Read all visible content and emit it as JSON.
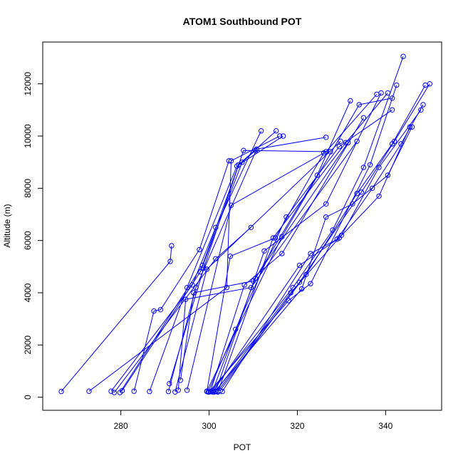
{
  "chart_data": {
    "type": "scatter",
    "title": "ATOM1 Southbound POT",
    "xlabel": "POT",
    "ylabel": "Altitude (m)",
    "xlim": [
      262.3,
      352.7
    ],
    "ylim": [
      -500,
      13600
    ],
    "x_ticks": [
      280,
      300,
      320,
      340
    ],
    "y_ticks": [
      0,
      2000,
      4000,
      6000,
      8000,
      10000,
      12000
    ],
    "grid": false,
    "legend": "none",
    "colors": {
      "series": "#0000ff",
      "axis": "#000000",
      "text": "#000000"
    },
    "series": [
      {
        "x": [
          266.5,
          291.2,
          291.5
        ],
        "y": [
          220,
          5200,
          5800
        ]
      },
      {
        "x": [
          272.8,
          304.0,
          305.0,
          316.0
        ],
        "y": [
          230,
          4200,
          9050,
          10000
        ]
      },
      {
        "x": [
          277.8,
          296.2,
          301.5,
          311.8
        ],
        "y": [
          230,
          4300,
          6500,
          10200
        ]
      },
      {
        "x": [
          278.5,
          301.5,
          309.5
        ],
        "y": [
          180,
          5300,
          6500
        ]
      },
      {
        "x": [
          279.8,
          298.5,
          306.7,
          315.2
        ],
        "y": [
          180,
          5050,
          8900,
          10200
        ]
      },
      {
        "x": [
          280.3,
          298.0,
          307.5,
          310.5
        ],
        "y": [
          250,
          4800,
          9000,
          9450
        ]
      },
      {
        "x": [
          283.0,
          287.5,
          289.0,
          297.8,
          304.5
        ],
        "y": [
          230,
          3300,
          3350,
          5650,
          9050
        ]
      },
      {
        "x": [
          286.5,
          295.0,
          306.3,
          316.8
        ],
        "y": [
          220,
          4200,
          8850,
          10000
        ]
      },
      {
        "x": [
          290.8,
          297.0,
          310.8,
          326.5
        ],
        "y": [
          220,
          4200,
          9500,
          9950
        ]
      },
      {
        "x": [
          291.0,
          298.8,
          307.8,
          327.5
        ],
        "y": [
          520,
          4950,
          9450,
          9400
        ]
      },
      {
        "x": [
          292.3,
          299.5,
          329.8
        ],
        "y": [
          200,
          4900,
          9800
        ]
      },
      {
        "x": [
          293.0,
          294.7,
          309.5,
          333.5
        ],
        "y": [
          270,
          3750,
          4200,
          9800
        ]
      },
      {
        "x": [
          293.5,
          296.5,
          310.0,
          331.5
        ],
        "y": [
          650,
          4000,
          4450,
          9750
        ]
      },
      {
        "x": [
          295.0,
          305.0,
          326.5,
          338.0
        ],
        "y": [
          270,
          7350,
          9400,
          11600
        ]
      },
      {
        "x": [
          299.5,
          304.8,
          315.0,
          326.0
        ],
        "y": [
          220,
          5400,
          6100,
          9350
        ]
      },
      {
        "x": [
          299.8,
          306.0,
          317.5,
          329.5,
          341.5
        ],
        "y": [
          200,
          2600,
          6900,
          9600,
          11000
        ]
      },
      {
        "x": [
          300.3,
          308.0,
          316.5,
          335.0
        ],
        "y": [
          220,
          4300,
          5500,
          10700
        ]
      },
      {
        "x": [
          300.8,
          310.5,
          324.5,
          332.0
        ],
        "y": [
          250,
          4550,
          8500,
          11350
        ]
      },
      {
        "x": [
          301.5,
          312.5,
          326.5,
          339.0
        ],
        "y": [
          230,
          5600,
          7400,
          11650
        ]
      },
      {
        "x": [
          302.0,
          314.5,
          331.0,
          340.5
        ],
        "y": [
          200,
          6100,
          9750,
          11650
        ]
      },
      {
        "x": [
          299.5,
          316.5,
          334.0,
          341.5
        ],
        "y": [
          230,
          6150,
          11200,
          11450
        ]
      },
      {
        "x": [
          300.0,
          318.0,
          323.0,
          336.5,
          342.5
        ],
        "y": [
          200,
          3700,
          4350,
          8900,
          11950
        ]
      },
      {
        "x": [
          300.5,
          319.0,
          328.0,
          335.0,
          344.0
        ],
        "y": [
          220,
          4200,
          6400,
          8800,
          13050
        ]
      },
      {
        "x": [
          300.8,
          320.5,
          329.5,
          338.5,
          345.5
        ],
        "y": [
          200,
          5050,
          6100,
          7700,
          10350
        ]
      },
      {
        "x": [
          301.2,
          321.0,
          326.5,
          332.5,
          340.5,
          346.0
        ],
        "y": [
          200,
          4150,
          6900,
          7400,
          8500,
          10350
        ]
      },
      {
        "x": [
          301.5,
          318.5,
          330.0,
          338.5,
          348.0
        ],
        "y": [
          220,
          4000,
          6200,
          8800,
          11000
        ]
      },
      {
        "x": [
          302.0,
          322.0,
          333.5,
          341.5,
          349.0
        ],
        "y": [
          230,
          4700,
          7800,
          9700,
          11950
        ]
      },
      {
        "x": [
          302.5,
          320.5,
          334.5,
          342.0,
          350.0
        ],
        "y": [
          250,
          4400,
          7850,
          9800,
          12000
        ]
      },
      {
        "x": [
          303.0,
          323.0,
          329.0,
          337.0,
          343.5,
          348.5
        ],
        "y": [
          220,
          5500,
          6050,
          8000,
          9700,
          11200
        ]
      }
    ]
  }
}
